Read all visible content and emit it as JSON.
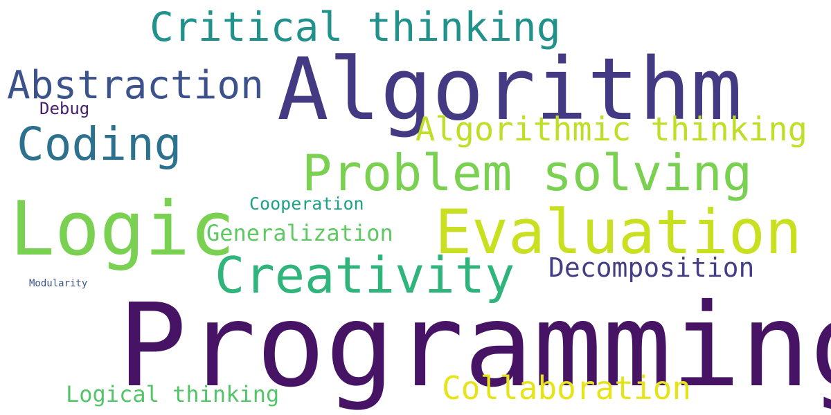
{
  "words": [
    {
      "key": "programming",
      "text": "Programming",
      "color": "#471365"
    },
    {
      "key": "algorithm",
      "text": "Algorithm",
      "color": "#443983"
    },
    {
      "key": "logic",
      "text": "Logic",
      "color": "#7AD151"
    },
    {
      "key": "evaluation",
      "text": "Evaluation",
      "color": "#C8E020"
    },
    {
      "key": "creativity",
      "text": "Creativity",
      "color": "#2FB47C"
    },
    {
      "key": "problem_solving",
      "text": "Problem solving",
      "color": "#7AD151"
    },
    {
      "key": "critical_thinking",
      "text": "Critical thinking",
      "color": "#21918C"
    },
    {
      "key": "coding",
      "text": "Coding",
      "color": "#2C728E"
    },
    {
      "key": "abstraction",
      "text": "Abstraction",
      "color": "#3B528B"
    },
    {
      "key": "algorithmic_thinking",
      "text": "Algorithmic thinking",
      "color": "#BDDF26"
    },
    {
      "key": "collaboration",
      "text": "Collaboration",
      "color": "#E5E419"
    },
    {
      "key": "decomposition",
      "text": "Decomposition",
      "color": "#433E85"
    },
    {
      "key": "generalization",
      "text": "Generalization",
      "color": "#5EC962"
    },
    {
      "key": "logical_thinking",
      "text": "Logical thinking",
      "color": "#52C569"
    },
    {
      "key": "cooperation",
      "text": "Cooperation",
      "color": "#1FA187"
    },
    {
      "key": "debug",
      "text": "Debug",
      "color": "#481F70"
    },
    {
      "key": "modularity",
      "text": "Modularity",
      "color": "#3B528B"
    }
  ]
}
